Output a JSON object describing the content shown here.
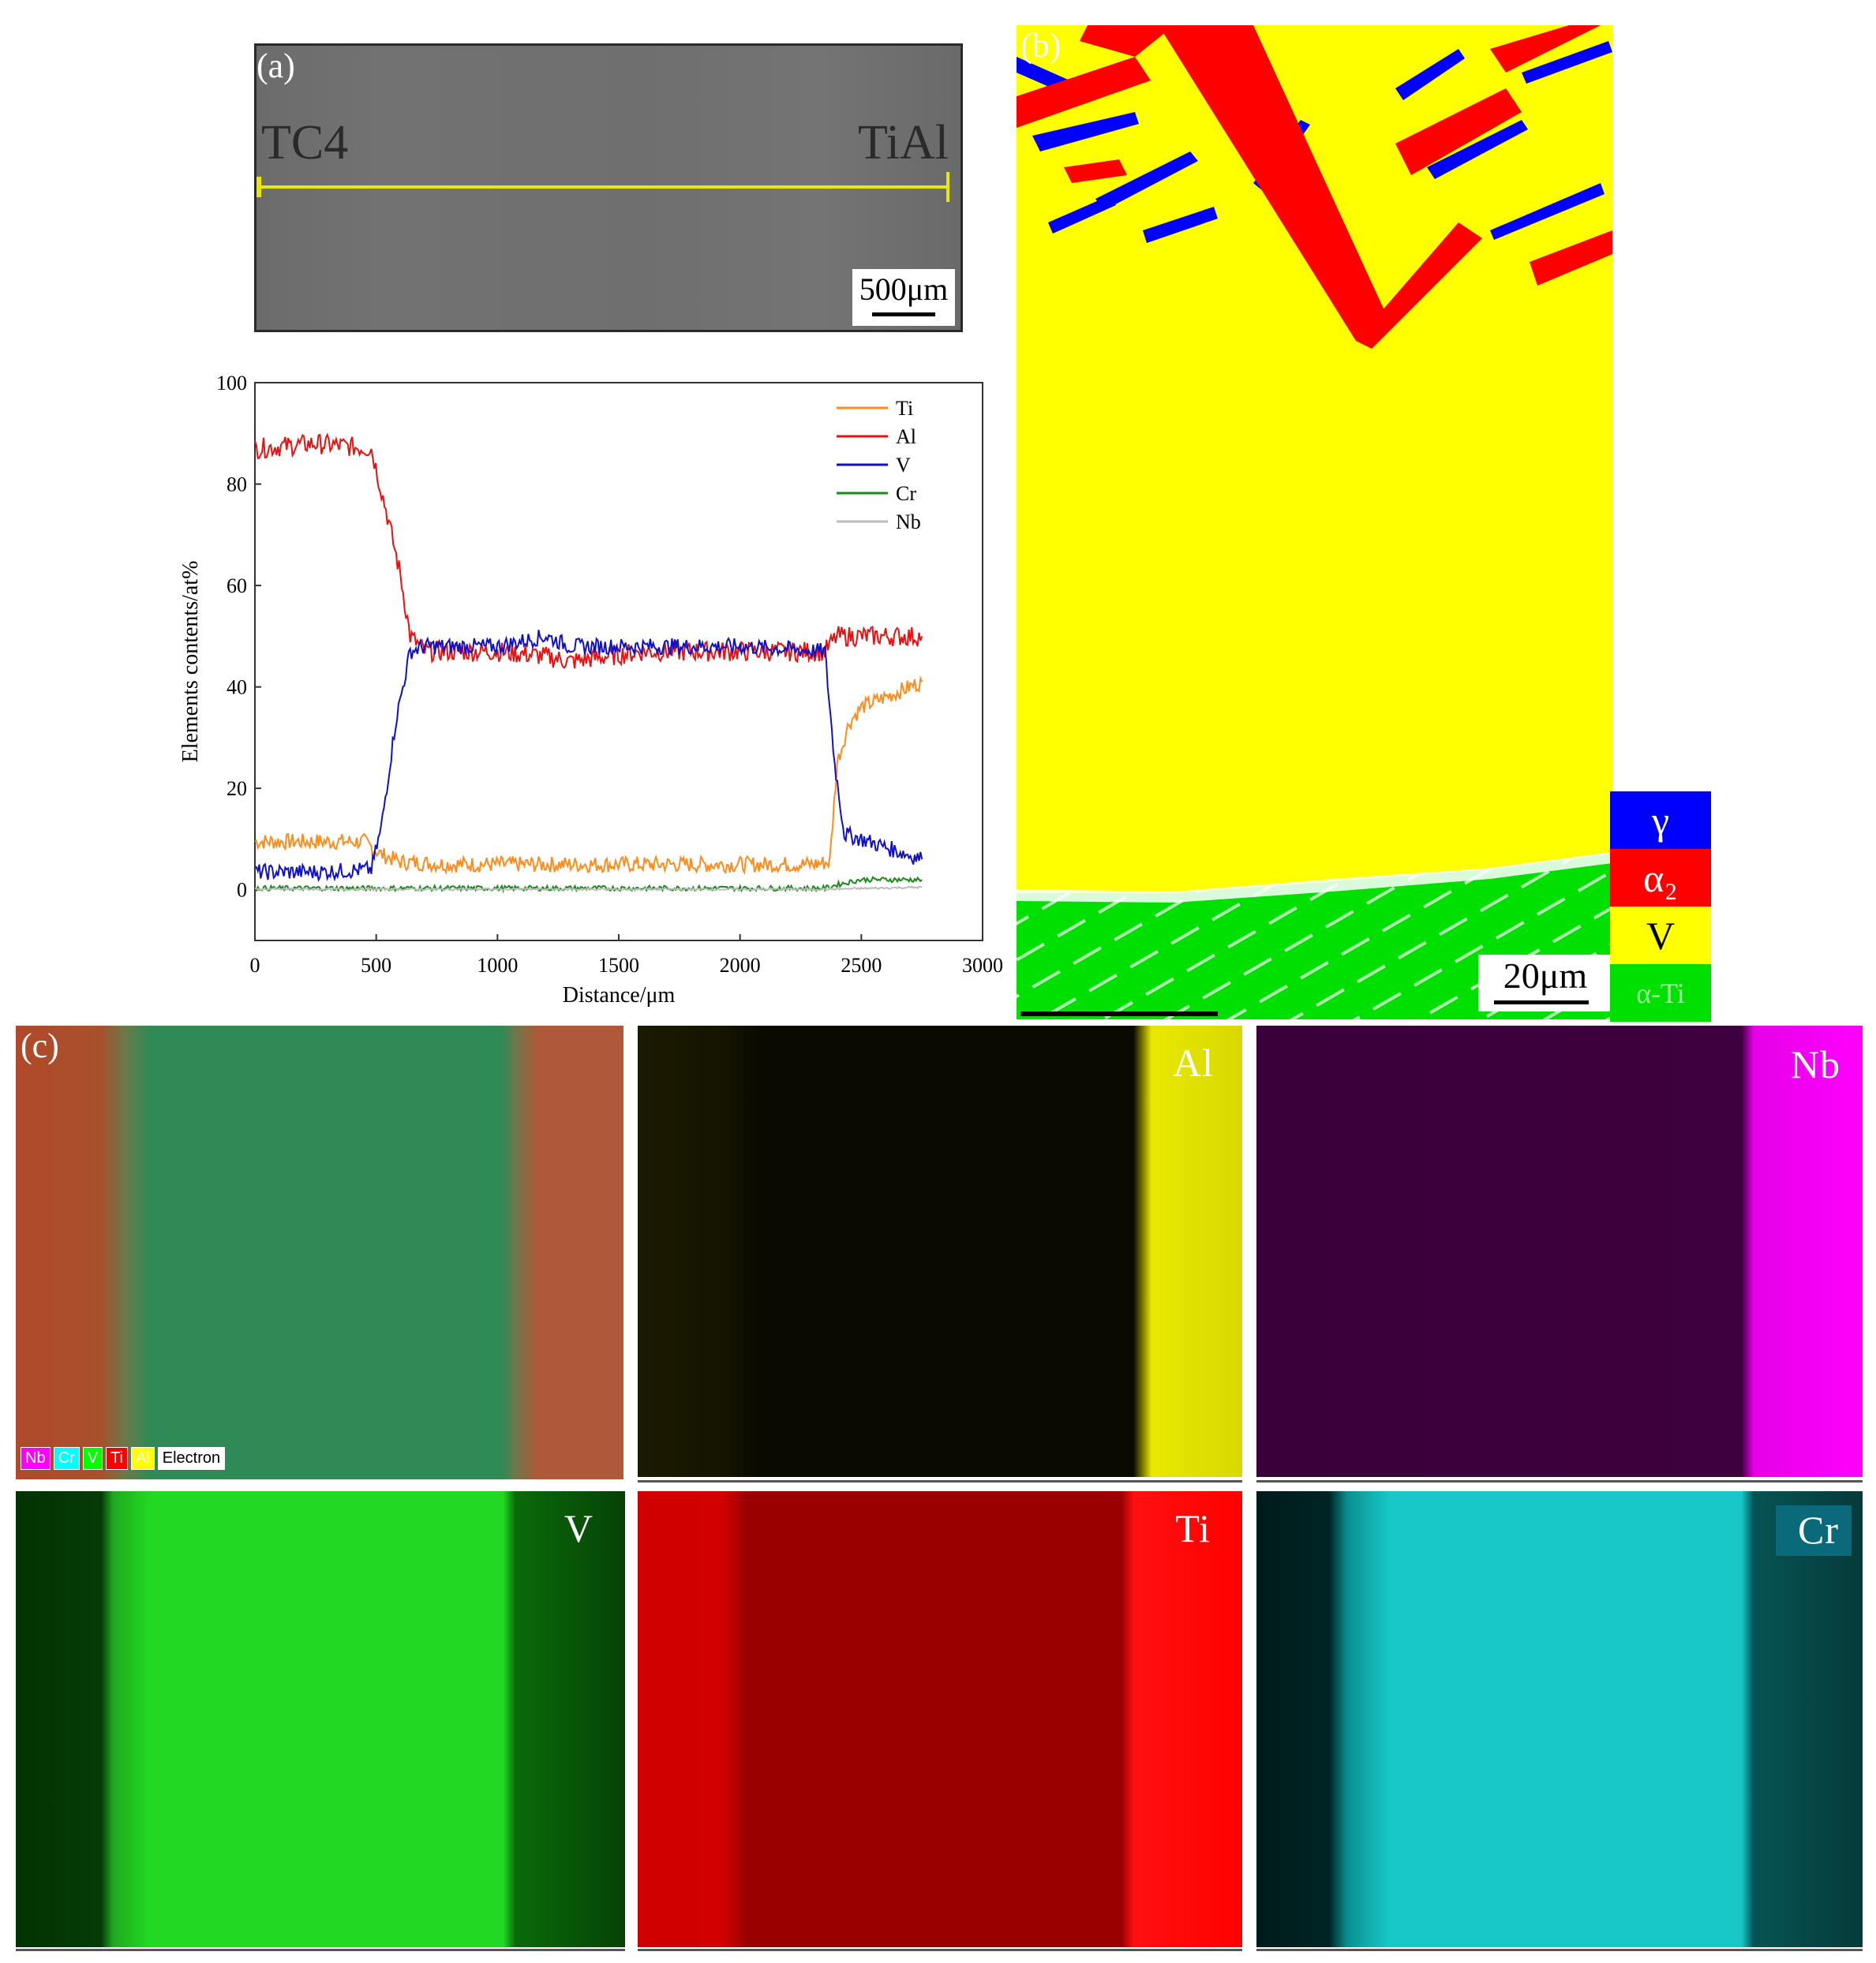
{
  "panel_a": {
    "label": "(a)",
    "left_label": "TC4",
    "right_label": "TiAl",
    "scale_bar": "500μm"
  },
  "panel_b": {
    "label": "(b)",
    "scale_bar": "20μm",
    "legend": [
      {
        "symbol": "γ",
        "color": "#0000ff",
        "text_color": "#ffffff"
      },
      {
        "symbol": "α₂",
        "color": "#ff0000",
        "text_color": "#ffffff"
      },
      {
        "symbol": "V",
        "color": "#ffff00",
        "text_color": "#000000"
      },
      {
        "symbol": "α-Ti",
        "color": "#00e000",
        "text_color": "#9fff9f"
      }
    ],
    "colors": {
      "gamma": "#0000ff",
      "alpha2": "#ff0000",
      "v": "#ffff00",
      "alpha_ti": "#00e000"
    }
  },
  "panel_c": {
    "label": "(c)",
    "composite_legend": [
      {
        "text": "Nb",
        "color": "#ff00ff"
      },
      {
        "text": "Cr",
        "color": "#00ffff"
      },
      {
        "text": "V",
        "color": "#00ff00"
      },
      {
        "text": "Ti",
        "color": "#ff0000"
      },
      {
        "text": "Al",
        "color": "#ffff00"
      },
      {
        "text": "Electron",
        "color": "#ffffff"
      }
    ],
    "maps": [
      {
        "element": "Al",
        "color": "#e8e800"
      },
      {
        "element": "Nb",
        "color": "#ff00ff"
      },
      {
        "element": "V",
        "color": "#00ff00"
      },
      {
        "element": "Ti",
        "color": "#ff0000"
      },
      {
        "element": "Cr",
        "color": "#00e6e6"
      }
    ]
  },
  "chart_data": {
    "type": "line",
    "title": "",
    "xlabel": "Distance/μm",
    "ylabel": "Elements contents/at%",
    "xlim": [
      0,
      3000
    ],
    "ylim": [
      -10,
      100
    ],
    "xticks": [
      0,
      500,
      1000,
      1500,
      2000,
      2500,
      3000
    ],
    "yticks": [
      0,
      20,
      40,
      60,
      80,
      100
    ],
    "legend_position": "top-right",
    "series": [
      {
        "name": "Ti",
        "color": "#ff8c1a",
        "x": [
          0,
          250,
          450,
          520,
          600,
          800,
          1200,
          1600,
          2000,
          2300,
          2370,
          2400,
          2450,
          2500,
          2600,
          2750
        ],
        "y": [
          9.5,
          9.5,
          9.5,
          7,
          5.5,
          5,
          5,
          5,
          5,
          5,
          5.5,
          25,
          33,
          36,
          38,
          41
        ]
      },
      {
        "name": "Al",
        "color": "#e81010",
        "x": [
          0,
          250,
          480,
          540,
          600,
          640,
          700,
          1000,
          1200,
          1300,
          1600,
          2000,
          2350,
          2400,
          2450,
          2750
        ],
        "y": [
          87,
          88,
          87,
          75,
          62,
          50,
          47,
          47,
          46,
          45,
          47,
          47,
          47,
          50,
          50,
          50
        ]
      },
      {
        "name": "V",
        "color": "#1010c8",
        "x": [
          0,
          250,
          480,
          520,
          580,
          640,
          700,
          1000,
          1200,
          1300,
          1600,
          2000,
          2350,
          2390,
          2430,
          2500,
          2750
        ],
        "y": [
          3.5,
          3.5,
          4,
          12,
          33,
          47,
          48,
          48,
          50,
          48,
          48,
          48,
          47,
          25,
          11,
          10,
          6
        ]
      },
      {
        "name": "Cr",
        "color": "#1a8a1a",
        "x": [
          0,
          500,
          1000,
          1500,
          2000,
          2350,
          2400,
          2500,
          2750
        ],
        "y": [
          0.3,
          0.3,
          0.3,
          0.3,
          0.3,
          0.3,
          1,
          2,
          2
        ]
      },
      {
        "name": "Nb",
        "color": "#bbbbbb",
        "x": [
          0,
          500,
          1000,
          1500,
          2000,
          2350,
          2750
        ],
        "y": [
          0.1,
          0.1,
          0.1,
          0.1,
          0.1,
          0.1,
          0.5
        ]
      }
    ]
  }
}
